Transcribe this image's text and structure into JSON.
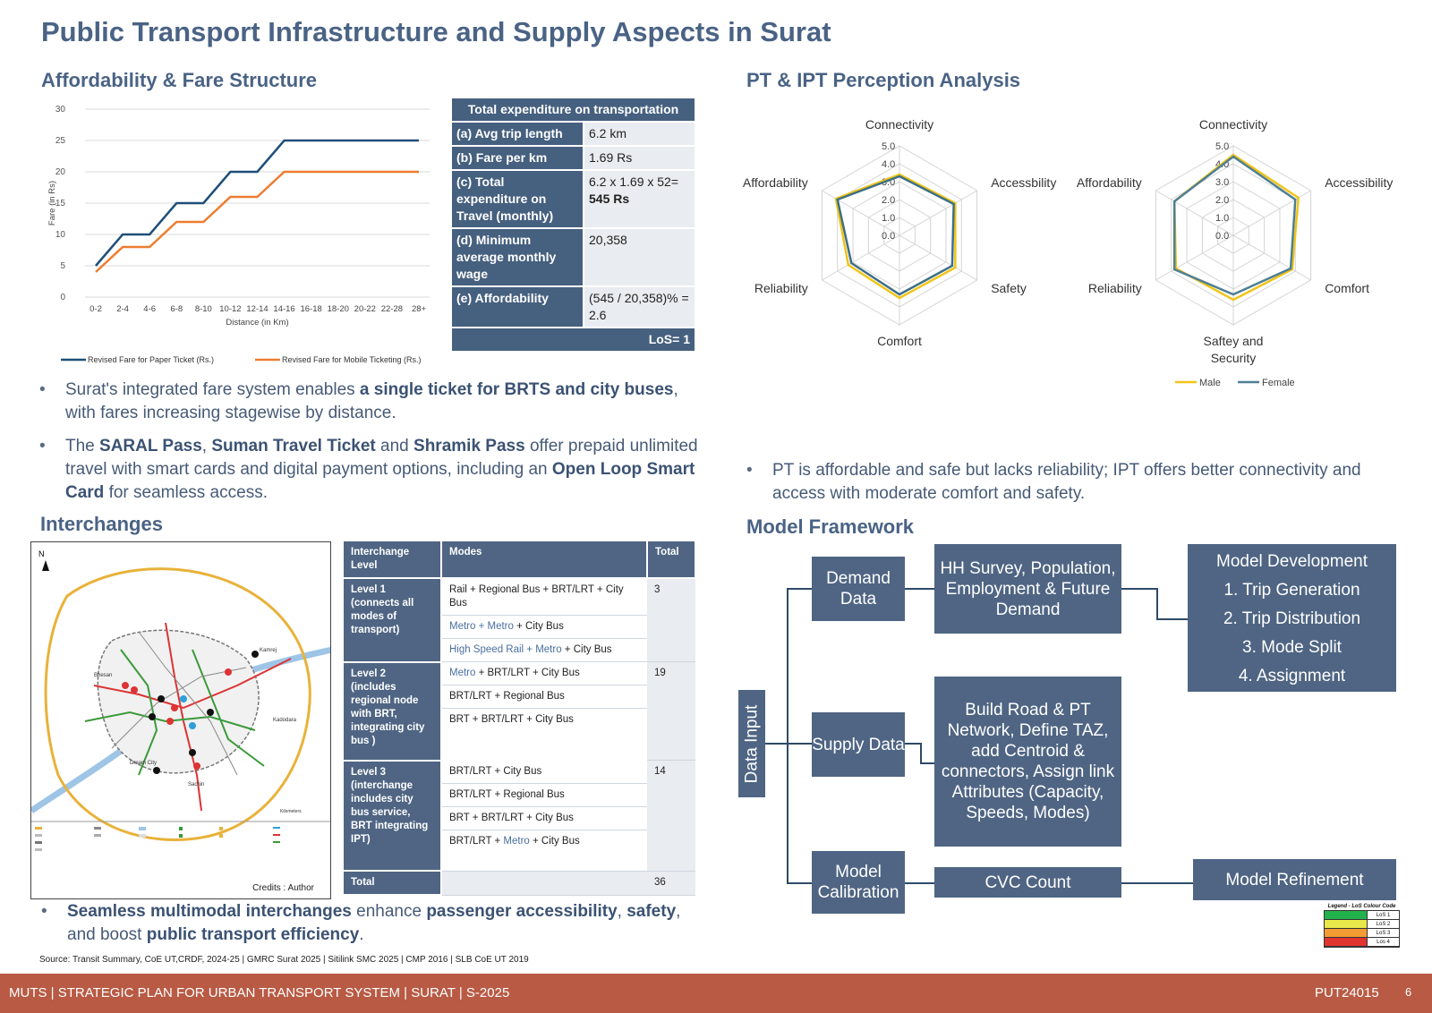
{
  "title": "Public Transport Infrastructure and Supply Aspects in Surat",
  "sections": {
    "affordability": "Affordability & Fare Structure",
    "perception": "PT & IPT Perception Analysis",
    "interchanges": "Interchanges",
    "framework": "Model Framework"
  },
  "chart_data": [
    {
      "type": "line",
      "ylabel": "Fare (in Rs)",
      "xlabel": "Distance (in Km)",
      "ylim": [
        0,
        30
      ],
      "yticks": [
        "0",
        "5",
        "10",
        "15",
        "20",
        "25",
        "30"
      ],
      "categories": [
        "0-2",
        "2-4",
        "4-6",
        "6-8",
        "8-10",
        "10-12",
        "12-14",
        "14-16",
        "16-18",
        "18-20",
        "20-22",
        "22-28",
        "28+"
      ],
      "series": [
        {
          "name": "Revised Fare for Paper Ticket (Rs.)",
          "color": "#1f4e79",
          "values": [
            5,
            10,
            10,
            15,
            15,
            20,
            20,
            25,
            25,
            25,
            25,
            25,
            25
          ]
        },
        {
          "name": "Revised Fare for Mobile Ticketing (Rs.)",
          "color": "#ed7d31",
          "values": [
            4,
            8,
            8,
            12,
            12,
            16,
            16,
            20,
            20,
            20,
            20,
            20,
            20
          ]
        }
      ],
      "legend": "bottom"
    },
    {
      "type": "radar",
      "axes": [
        "Connectivity",
        "Accessbility",
        "Safety",
        "Comfort",
        "Reliability",
        "Affordability"
      ],
      "rticks": [
        "0.0",
        "1.0",
        "2.0",
        "3.0",
        "4.0",
        "5.0"
      ],
      "rmax": 5,
      "series": [
        {
          "color": "#f0c419",
          "values": [
            3.4,
            3.6,
            3.6,
            3.5,
            3.3,
            4.1
          ]
        },
        {
          "color": "#3e6f86",
          "values": [
            3.3,
            3.5,
            3.4,
            3.3,
            3.1,
            4.0
          ]
        }
      ]
    },
    {
      "type": "radar",
      "axes": [
        "Connectivity",
        "Accessibility",
        "Comfort",
        "Saftey and Security",
        "Reliability",
        "Affordability"
      ],
      "rticks": [
        "0.0",
        "1.0",
        "2.0",
        "3.0",
        "4.0",
        "5.0"
      ],
      "rmax": 5,
      "series": [
        {
          "name": "Male",
          "color": "#f0c419",
          "values": [
            4.5,
            4.2,
            3.8,
            3.6,
            3.7,
            3.8
          ]
        },
        {
          "name": "Female",
          "color": "#4d7f93",
          "values": [
            4.4,
            4.0,
            3.7,
            3.3,
            3.8,
            3.8
          ]
        }
      ],
      "legend": "bottom"
    }
  ],
  "expenditure": {
    "header": "Total expenditure on transportation",
    "rows": [
      {
        "k": "(a) Avg trip length",
        "v": "6.2 km",
        "v2": ""
      },
      {
        "k": "(b) Fare per km",
        "v": "1.69 Rs",
        "v2": ""
      },
      {
        "k": "(c) Total expenditure on Travel (monthly)",
        "v": "6.2 x 1.69 x 52=",
        "v2": "545 Rs"
      },
      {
        "k": "(d) Minimum average monthly wage",
        "v": "20,358",
        "v2": ""
      },
      {
        "k": "(e) Affordability",
        "v": "(545 / 20,358)% = 2.6",
        "v2": ""
      }
    ],
    "los": "LoS= 1"
  },
  "bullets": {
    "b1_pre": "Surat's integrated fare system enables ",
    "b1_bold": "a single ticket for BRTS and city buses",
    "b1_post": ", with fares increasing stagewise by distance.",
    "b2_t1": "The ",
    "b2_b1": "SARAL Pass",
    "b2_t2": ", ",
    "b2_b2": "Suman Travel Ticket",
    "b2_t3": " and ",
    "b2_b3": "Shramik Pass",
    "b2_t4": " offer prepaid unlimited travel with smart cards and digital payment options, including an ",
    "b2_b4": "Open Loop Smart Card",
    "b2_t5": " for seamless access.",
    "b3": "PT is affordable and safe but lacks reliability; IPT offers better connectivity and access with moderate comfort and safety.",
    "b4_b1": "Seamless multimodal interchanges",
    "b4_t1": " enhance ",
    "b4_b2": "passenger accessibility",
    "b4_t2": ", ",
    "b4_b3": "safety",
    "b4_t3": ", and boost ",
    "b4_b4": "public transport efficiency",
    "b4_t4": "."
  },
  "interchange": {
    "headers": [
      "Interchange Level",
      "Modes",
      "Total"
    ],
    "level1": {
      "label": "Level 1 (connects all modes of transport)",
      "total": "3",
      "m1": "Rail + Regional Bus + BRT/LRT + City Bus",
      "m2a": "Metro + Metro",
      "m2b": " + City Bus",
      "m3a": "High Speed Rail + Metro",
      "m3b": " + City Bus"
    },
    "level2": {
      "label": "Level 2 (includes regional node with BRT, integrating city bus )",
      "total": "19",
      "m1a": "Metro",
      "m1b": " + BRT/LRT + City Bus",
      "m2": "BRT/LRT + Regional Bus",
      "m3": "BRT + BRT/LRT + City Bus"
    },
    "level3": {
      "label": "Level 3 (interchange includes city bus service, BRT integrating IPT)",
      "total": "14",
      "m1": "BRT/LRT + City Bus",
      "m2": "BRT/LRT + Regional Bus",
      "m3": "BRT + BRT/LRT + City Bus",
      "m4a": "BRT/LRT + ",
      "m4b": "Metro",
      "m4c": " + City Bus"
    },
    "total_label": "Total",
    "total_value": "36"
  },
  "map": {
    "credits": "Credits : Author",
    "north": "N",
    "places": [
      "Kamrej",
      "Bhesan",
      "Dream City",
      "Sachin",
      "Kadodara"
    ],
    "scale": "Kilometers"
  },
  "framework": {
    "data_input": "Data Input",
    "demand": "Demand Data",
    "supply": "Supply Data",
    "calibration": "Model Calibration",
    "hh": "HH Survey, Population, Employment & Future Demand",
    "build": "Build Road & PT Network, Define TAZ, add Centroid & connectors, Assign link Attributes (Capacity, Speeds, Modes)",
    "cvc": "CVC Count",
    "dev_title": "Model Development",
    "dev_items": [
      "1. Trip Generation",
      "2. Trip Distribution",
      "3. Mode Split",
      "4. Assignment"
    ],
    "refinement": "Model Refinement"
  },
  "los_legend": {
    "title": "Legend - LoS Colour Code",
    "items": [
      {
        "label": "LoS 1",
        "color": "#22b14c"
      },
      {
        "label": "LoS 2",
        "color": "#e8e84a"
      },
      {
        "label": "LoS 3",
        "color": "#f39c34"
      },
      {
        "label": "Los 4",
        "color": "#e0342f"
      }
    ]
  },
  "source": "Source: Transit Summary, CoE UT,CRDF, 2024-25 | GMRC Surat 2025 | Sitilink SMC 2025 | CMP 2016 | SLB CoE UT 2019",
  "footer": {
    "left": "MUTS  | STRATEGIC PLAN FOR URBAN TRANSPORT SYSTEM | SURAT | S-2025",
    "code": "PUT24015",
    "page": "6"
  }
}
